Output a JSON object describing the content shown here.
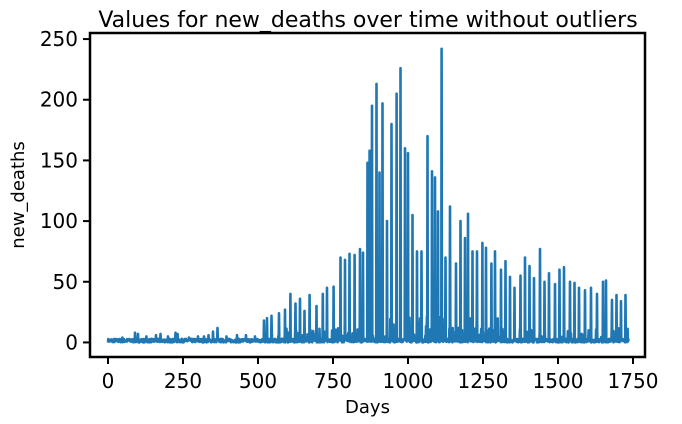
{
  "chart_data": {
    "type": "line",
    "title": "Values for new_deaths over time without outliers",
    "xlabel": "Days",
    "ylabel": "new_deaths",
    "xlim": [
      -60,
      1790
    ],
    "ylim": [
      -12,
      255
    ],
    "xticks": [
      0,
      250,
      500,
      750,
      1000,
      1250,
      1500,
      1750
    ],
    "yticks": [
      0,
      50,
      100,
      150,
      200,
      250
    ],
    "grid": false,
    "legend": "none",
    "series": [
      {
        "color": "#1f77b4",
        "x_start": 0,
        "x_end": 1735,
        "baseline_max": 3,
        "spikes": [
          [
            30,
            2
          ],
          [
            48,
            4
          ],
          [
            62,
            2
          ],
          [
            90,
            8
          ],
          [
            100,
            7
          ],
          [
            128,
            5
          ],
          [
            160,
            6
          ],
          [
            175,
            7
          ],
          [
            200,
            5
          ],
          [
            225,
            8
          ],
          [
            232,
            7
          ],
          [
            270,
            4
          ],
          [
            300,
            5
          ],
          [
            320,
            5
          ],
          [
            335,
            6
          ],
          [
            350,
            9
          ],
          [
            365,
            12
          ],
          [
            395,
            5
          ],
          [
            430,
            6
          ],
          [
            460,
            6
          ],
          [
            490,
            5
          ],
          [
            520,
            18
          ],
          [
            530,
            20
          ],
          [
            545,
            22
          ],
          [
            570,
            24
          ],
          [
            590,
            27
          ],
          [
            608,
            40
          ],
          [
            625,
            32
          ],
          [
            640,
            36
          ],
          [
            655,
            26
          ],
          [
            672,
            39
          ],
          [
            695,
            30
          ],
          [
            716,
            40
          ],
          [
            730,
            45
          ],
          [
            752,
            46
          ],
          [
            775,
            70
          ],
          [
            790,
            68
          ],
          [
            805,
            73
          ],
          [
            822,
            72
          ],
          [
            840,
            77
          ],
          [
            850,
            74
          ],
          [
            865,
            148
          ],
          [
            872,
            158
          ],
          [
            880,
            195
          ],
          [
            895,
            213
          ],
          [
            905,
            140
          ],
          [
            915,
            197
          ],
          [
            930,
            100
          ],
          [
            945,
            180
          ],
          [
            962,
            205
          ],
          [
            975,
            226
          ],
          [
            990,
            160
          ],
          [
            1000,
            156
          ],
          [
            1015,
            105
          ],
          [
            1030,
            75
          ],
          [
            1045,
            75
          ],
          [
            1065,
            170
          ],
          [
            1080,
            141
          ],
          [
            1090,
            136
          ],
          [
            1100,
            108
          ],
          [
            1112,
            242
          ],
          [
            1125,
            70
          ],
          [
            1140,
            112
          ],
          [
            1160,
            65
          ],
          [
            1175,
            100
          ],
          [
            1190,
            86
          ],
          [
            1200,
            106
          ],
          [
            1215,
            75
          ],
          [
            1230,
            75
          ],
          [
            1248,
            82
          ],
          [
            1260,
            78
          ],
          [
            1278,
            65
          ],
          [
            1290,
            75
          ],
          [
            1310,
            60
          ],
          [
            1325,
            67
          ],
          [
            1340,
            54
          ],
          [
            1355,
            45
          ],
          [
            1375,
            55
          ],
          [
            1390,
            70
          ],
          [
            1405,
            63
          ],
          [
            1420,
            53
          ],
          [
            1440,
            77
          ],
          [
            1455,
            50
          ],
          [
            1470,
            57
          ],
          [
            1490,
            48
          ],
          [
            1505,
            60
          ],
          [
            1520,
            62
          ],
          [
            1540,
            50
          ],
          [
            1555,
            49
          ],
          [
            1570,
            45
          ],
          [
            1590,
            43
          ],
          [
            1610,
            45
          ],
          [
            1630,
            40
          ],
          [
            1650,
            50
          ],
          [
            1660,
            51
          ],
          [
            1680,
            35
          ],
          [
            1695,
            39
          ],
          [
            1710,
            34
          ],
          [
            1725,
            39
          ]
        ]
      }
    ]
  }
}
